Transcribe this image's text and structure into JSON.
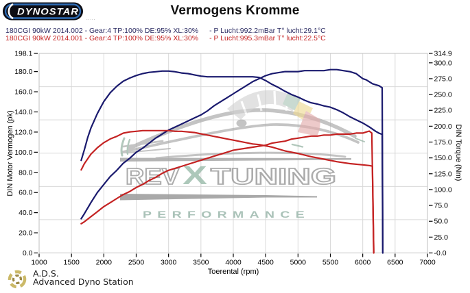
{
  "header": {
    "logo_text": "DYNOSTAR",
    "logo_sub": ".....",
    "title": "Vermogens Kromme",
    "runs": [
      {
        "name": "180CGI 90kW 2014.002",
        "settings": "- Gear:4 TP:100% DE:95% XL:30%",
        "env": "- P Lucht:992.2mBar T° lucht:29.1°C",
        "color": "#2b2b62"
      },
      {
        "name": "180CGI 90kW 2014.001",
        "settings": "- Gear:4 TP:100% DE:95% XL:30%",
        "env": "- P Lucht:995.3mBar T° lucht:22.5°C",
        "color": "#c42222"
      }
    ]
  },
  "watermark": {
    "rev": "REV",
    "x": "X",
    "tuning": "TUNING",
    "performance": "PERFORMANCE"
  },
  "footer": {
    "abbr": "A.D.S.",
    "name": "Advanced Dyno Station"
  },
  "icons": {
    "dynostar-logo": "black pill with blue ring and white wordmark",
    "gauge-arc-icon": "speedometer arc gray/teal/yellow/red",
    "car-sketch-icon": "gray abstract car swoosh",
    "ads-swirl-icon": "gold laurel swirl emblem"
  },
  "chart_data": {
    "type": "line",
    "title": "Vermogens Kromme",
    "grid": true,
    "xlim": [
      1000,
      7000
    ],
    "ylim_left": [
      0,
      198.1
    ],
    "ylim_right": [
      0,
      314.9
    ],
    "x_axis": {
      "title": "Toerental (rpm)",
      "ticks": [
        {
          "label": "1000",
          "v": 1000
        },
        {
          "label": "1500",
          "v": 1500
        },
        {
          "label": "2000",
          "v": 2000
        },
        {
          "label": "2500",
          "v": 2500
        },
        {
          "label": "3000",
          "v": 3000
        },
        {
          "label": "3500",
          "v": 3500
        },
        {
          "label": "4000",
          "v": 4000
        },
        {
          "label": "4500",
          "v": 4500
        },
        {
          "label": "5000",
          "v": 5000
        },
        {
          "label": "5500",
          "v": 5500
        },
        {
          "label": "6000",
          "v": 6000
        },
        {
          "label": "6500",
          "v": 6500
        },
        {
          "label": "7000",
          "v": 7000
        }
      ]
    },
    "left_axis": {
      "title": "DIN Motor Vermogen (pk)",
      "ticks": [
        {
          "label": "198.1",
          "v": 198.1
        },
        {
          "label": "180.0",
          "v": 180
        },
        {
          "label": "160.0",
          "v": 160
        },
        {
          "label": "140.0",
          "v": 140
        },
        {
          "label": "120.0",
          "v": 120
        },
        {
          "label": "100.0",
          "v": 100
        },
        {
          "label": "80.0",
          "v": 80
        },
        {
          "label": "60.0",
          "v": 60
        },
        {
          "label": "40.0",
          "v": 40
        },
        {
          "label": "20.0",
          "v": 20
        },
        {
          "label": "0.0",
          "v": 0
        }
      ]
    },
    "right_axis": {
      "title": "DIN Torque (Nm)",
      "ticks": [
        {
          "label": "314.9",
          "v": 314.9
        },
        {
          "label": "300.0",
          "v": 300
        },
        {
          "label": "275.0",
          "v": 275
        },
        {
          "label": "250.0",
          "v": 250
        },
        {
          "label": "225.0",
          "v": 225
        },
        {
          "label": "200.0",
          "v": 200
        },
        {
          "label": "175.0",
          "v": 175
        },
        {
          "label": "150.0",
          "v": 150
        },
        {
          "label": "125.0",
          "v": 125
        },
        {
          "label": "100.0",
          "v": 100
        },
        {
          "label": "75.0",
          "v": 75
        },
        {
          "label": "50.0",
          "v": 50
        },
        {
          "label": "25.0",
          "v": 25
        },
        {
          "label": "-0.0",
          "v": 0
        }
      ]
    },
    "series": [
      {
        "name": "180CGI 90kW 2014.002 vermogen (pk)",
        "axis": "left",
        "unit": "pk",
        "color": "#1a1a6e",
        "points": [
          [
            1650,
            34
          ],
          [
            1700,
            39
          ],
          [
            1800,
            50
          ],
          [
            1900,
            60
          ],
          [
            2000,
            68
          ],
          [
            2100,
            76
          ],
          [
            2200,
            82
          ],
          [
            2300,
            89
          ],
          [
            2400,
            94
          ],
          [
            2500,
            100
          ],
          [
            2600,
            104
          ],
          [
            2700,
            109
          ],
          [
            2800,
            114
          ],
          [
            2900,
            118
          ],
          [
            3000,
            122
          ],
          [
            3100,
            125
          ],
          [
            3200,
            128
          ],
          [
            3300,
            131
          ],
          [
            3400,
            134
          ],
          [
            3500,
            137
          ],
          [
            3600,
            141
          ],
          [
            3700,
            146
          ],
          [
            3800,
            150
          ],
          [
            3900,
            154
          ],
          [
            4000,
            158
          ],
          [
            4100,
            162
          ],
          [
            4200,
            166
          ],
          [
            4300,
            170
          ],
          [
            4400,
            173
          ],
          [
            4500,
            176
          ],
          [
            4600,
            178
          ],
          [
            4700,
            179
          ],
          [
            4800,
            180
          ],
          [
            4900,
            180
          ],
          [
            5000,
            180
          ],
          [
            5100,
            181
          ],
          [
            5200,
            181
          ],
          [
            5300,
            181
          ],
          [
            5400,
            181
          ],
          [
            5500,
            182
          ],
          [
            5600,
            182
          ],
          [
            5700,
            181
          ],
          [
            5800,
            180
          ],
          [
            5900,
            178
          ],
          [
            6000,
            173
          ],
          [
            6050,
            172
          ],
          [
            6100,
            170
          ],
          [
            6150,
            168
          ],
          [
            6200,
            167
          ],
          [
            6250,
            166
          ],
          [
            6300,
            164
          ],
          [
            6310,
            0
          ]
        ]
      },
      {
        "name": "180CGI 90kW 2014.002 torque (Nm)",
        "axis": "right",
        "unit": "Nm",
        "color": "#1a1a6e",
        "points": [
          [
            1650,
            146
          ],
          [
            1700,
            163
          ],
          [
            1750,
            182
          ],
          [
            1800,
            197
          ],
          [
            1900,
            220
          ],
          [
            2000,
            239
          ],
          [
            2100,
            253
          ],
          [
            2200,
            263
          ],
          [
            2300,
            271
          ],
          [
            2400,
            276
          ],
          [
            2500,
            280
          ],
          [
            2600,
            283
          ],
          [
            2700,
            285
          ],
          [
            2800,
            286
          ],
          [
            2900,
            287
          ],
          [
            3000,
            287
          ],
          [
            3100,
            286
          ],
          [
            3200,
            284
          ],
          [
            3300,
            283
          ],
          [
            3400,
            281
          ],
          [
            3500,
            279
          ],
          [
            3600,
            278
          ],
          [
            3700,
            278
          ],
          [
            3800,
            278
          ],
          [
            3900,
            278
          ],
          [
            4000,
            278
          ],
          [
            4100,
            278
          ],
          [
            4200,
            278
          ],
          [
            4300,
            278
          ],
          [
            4400,
            277
          ],
          [
            4500,
            272
          ],
          [
            4600,
            266
          ],
          [
            4700,
            261
          ],
          [
            4800,
            255
          ],
          [
            4900,
            250
          ],
          [
            5000,
            246
          ],
          [
            5100,
            241
          ],
          [
            5200,
            237
          ],
          [
            5300,
            235
          ],
          [
            5400,
            232
          ],
          [
            5500,
            230
          ],
          [
            5600,
            226
          ],
          [
            5700,
            221
          ],
          [
            5800,
            215
          ],
          [
            5900,
            210
          ],
          [
            6000,
            205
          ],
          [
            6100,
            199
          ],
          [
            6200,
            192
          ],
          [
            6250,
            189
          ],
          [
            6300,
            187
          ],
          [
            6310,
            0
          ]
        ]
      },
      {
        "name": "180CGI 90kW 2014.001 vermogen (pk)",
        "axis": "left",
        "unit": "pk",
        "color": "#c42222",
        "points": [
          [
            1650,
            29
          ],
          [
            1700,
            31
          ],
          [
            1800,
            36
          ],
          [
            1900,
            41
          ],
          [
            2000,
            46
          ],
          [
            2100,
            50
          ],
          [
            2200,
            54
          ],
          [
            2300,
            58
          ],
          [
            2400,
            61
          ],
          [
            2500,
            65
          ],
          [
            2600,
            68
          ],
          [
            2700,
            72
          ],
          [
            2800,
            75
          ],
          [
            2900,
            79
          ],
          [
            3000,
            82
          ],
          [
            3100,
            84
          ],
          [
            3200,
            86
          ],
          [
            3300,
            88
          ],
          [
            3400,
            90
          ],
          [
            3500,
            92
          ],
          [
            3600,
            94
          ],
          [
            3700,
            96
          ],
          [
            3800,
            98
          ],
          [
            3900,
            100
          ],
          [
            4000,
            102
          ],
          [
            4100,
            103
          ],
          [
            4200,
            104
          ],
          [
            4300,
            105
          ],
          [
            4400,
            106
          ],
          [
            4500,
            107
          ],
          [
            4600,
            109
          ],
          [
            4700,
            110
          ],
          [
            4800,
            111
          ],
          [
            4900,
            113
          ],
          [
            5000,
            114
          ],
          [
            5100,
            115
          ],
          [
            5200,
            116
          ],
          [
            5300,
            116
          ],
          [
            5400,
            117
          ],
          [
            5500,
            117
          ],
          [
            5600,
            118
          ],
          [
            5700,
            118
          ],
          [
            5800,
            118
          ],
          [
            5900,
            119
          ],
          [
            6000,
            119
          ],
          [
            6050,
            120
          ],
          [
            6100,
            121
          ],
          [
            6140,
            119
          ],
          [
            6170,
            0
          ]
        ]
      },
      {
        "name": "180CGI 90kW 2014.001 torque (Nm)",
        "axis": "right",
        "unit": "Nm",
        "color": "#c42222",
        "points": [
          [
            1650,
            131
          ],
          [
            1700,
            141
          ],
          [
            1800,
            156
          ],
          [
            1900,
            166
          ],
          [
            2000,
            174
          ],
          [
            2100,
            180
          ],
          [
            2200,
            184
          ],
          [
            2300,
            189
          ],
          [
            2400,
            191
          ],
          [
            2500,
            192
          ],
          [
            2600,
            193
          ],
          [
            2700,
            193
          ],
          [
            2800,
            193
          ],
          [
            2900,
            193
          ],
          [
            3000,
            193
          ],
          [
            3100,
            192
          ],
          [
            3200,
            192
          ],
          [
            3300,
            191
          ],
          [
            3400,
            190
          ],
          [
            3500,
            188
          ],
          [
            3600,
            186
          ],
          [
            3700,
            184
          ],
          [
            3800,
            182
          ],
          [
            3900,
            180
          ],
          [
            4000,
            178
          ],
          [
            4100,
            176
          ],
          [
            4200,
            174
          ],
          [
            4300,
            172
          ],
          [
            4400,
            171
          ],
          [
            4500,
            169
          ],
          [
            4600,
            167
          ],
          [
            4700,
            164
          ],
          [
            4800,
            161
          ],
          [
            5000,
            157
          ],
          [
            5200,
            152
          ],
          [
            5400,
            148
          ],
          [
            5600,
            144
          ],
          [
            5800,
            141
          ],
          [
            6000,
            139
          ],
          [
            6100,
            138
          ],
          [
            6150,
            137
          ],
          [
            6170,
            0
          ]
        ]
      }
    ]
  }
}
